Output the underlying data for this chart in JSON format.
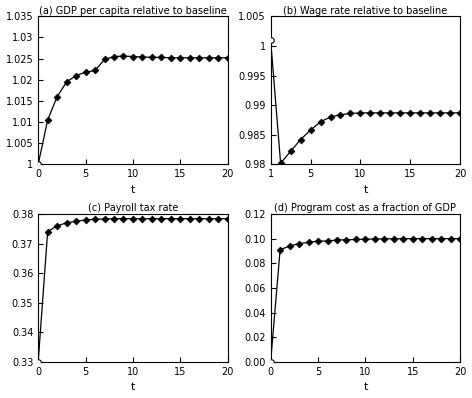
{
  "title_a": "(a) GDP per capita relative to baseline",
  "title_b": "(b) Wage rate relative to baseline",
  "title_c": "(c) Payroll tax rate",
  "title_d": "(d) Program cost as a fraction of GDP",
  "xlabel": "t",
  "gdp_t": [
    0,
    1,
    2,
    3,
    4,
    5,
    6,
    7,
    8,
    9,
    10,
    11,
    12,
    13,
    14,
    15,
    16,
    17,
    18,
    19,
    20
  ],
  "gdp_y": [
    1.0,
    1.0105,
    1.016,
    1.0195,
    1.021,
    1.0218,
    1.0222,
    1.0248,
    1.0255,
    1.0256,
    1.0255,
    1.0254,
    1.0253,
    1.0253,
    1.0252,
    1.0252,
    1.0252,
    1.0252,
    1.0252,
    1.0252,
    1.0252
  ],
  "gdp_ylim": [
    1.0,
    1.035
  ],
  "gdp_yticks": [
    1.0,
    1.005,
    1.01,
    1.015,
    1.02,
    1.025,
    1.03,
    1.035
  ],
  "wage_t": [
    1,
    2,
    3,
    4,
    5,
    6,
    7,
    8,
    9,
    10,
    11,
    12,
    13,
    14,
    15,
    16,
    17,
    18,
    19,
    20
  ],
  "wage_y": [
    1.001,
    0.9802,
    0.9822,
    0.9842,
    0.9858,
    0.9872,
    0.988,
    0.9884,
    0.9886,
    0.9887,
    0.9887,
    0.9887,
    0.9887,
    0.9887,
    0.9887,
    0.9887,
    0.9887,
    0.9887,
    0.9887,
    0.9887
  ],
  "wage_ylim": [
    0.98,
    1.005
  ],
  "wage_yticks": [
    0.98,
    0.985,
    0.99,
    0.995,
    1.0,
    1.005
  ],
  "payroll_t": [
    0,
    1,
    2,
    3,
    4,
    5,
    6,
    7,
    8,
    9,
    10,
    11,
    12,
    13,
    14,
    15,
    16,
    17,
    18,
    19,
    20
  ],
  "payroll_y": [
    0.33,
    0.374,
    0.376,
    0.377,
    0.3775,
    0.378,
    0.3782,
    0.3783,
    0.3784,
    0.3784,
    0.3784,
    0.3784,
    0.3784,
    0.3784,
    0.3784,
    0.3784,
    0.3784,
    0.3784,
    0.3784,
    0.3784,
    0.3784
  ],
  "payroll_ylim": [
    0.33,
    0.38
  ],
  "payroll_yticks": [
    0.33,
    0.34,
    0.35,
    0.36,
    0.37,
    0.38
  ],
  "cost_t": [
    0,
    1,
    2,
    3,
    4,
    5,
    6,
    7,
    8,
    9,
    10,
    11,
    12,
    13,
    14,
    15,
    16,
    17,
    18,
    19,
    20
  ],
  "cost_y": [
    0.0,
    0.091,
    0.094,
    0.096,
    0.097,
    0.098,
    0.098,
    0.099,
    0.099,
    0.0993,
    0.0995,
    0.0997,
    0.0998,
    0.0999,
    0.0999,
    0.1,
    0.1,
    0.1,
    0.1,
    0.1,
    0.1
  ],
  "cost_ylim": [
    0.0,
    0.12
  ],
  "cost_yticks": [
    0.0,
    0.02,
    0.04,
    0.06,
    0.08,
    0.1,
    0.12
  ],
  "line_color": "black",
  "marker": "D",
  "markersize": 3.5,
  "linewidth": 0.9,
  "background_color": "white",
  "xticks_a": [
    0,
    5,
    10,
    15,
    20
  ],
  "xticks_b": [
    1,
    5,
    10,
    15,
    20
  ]
}
